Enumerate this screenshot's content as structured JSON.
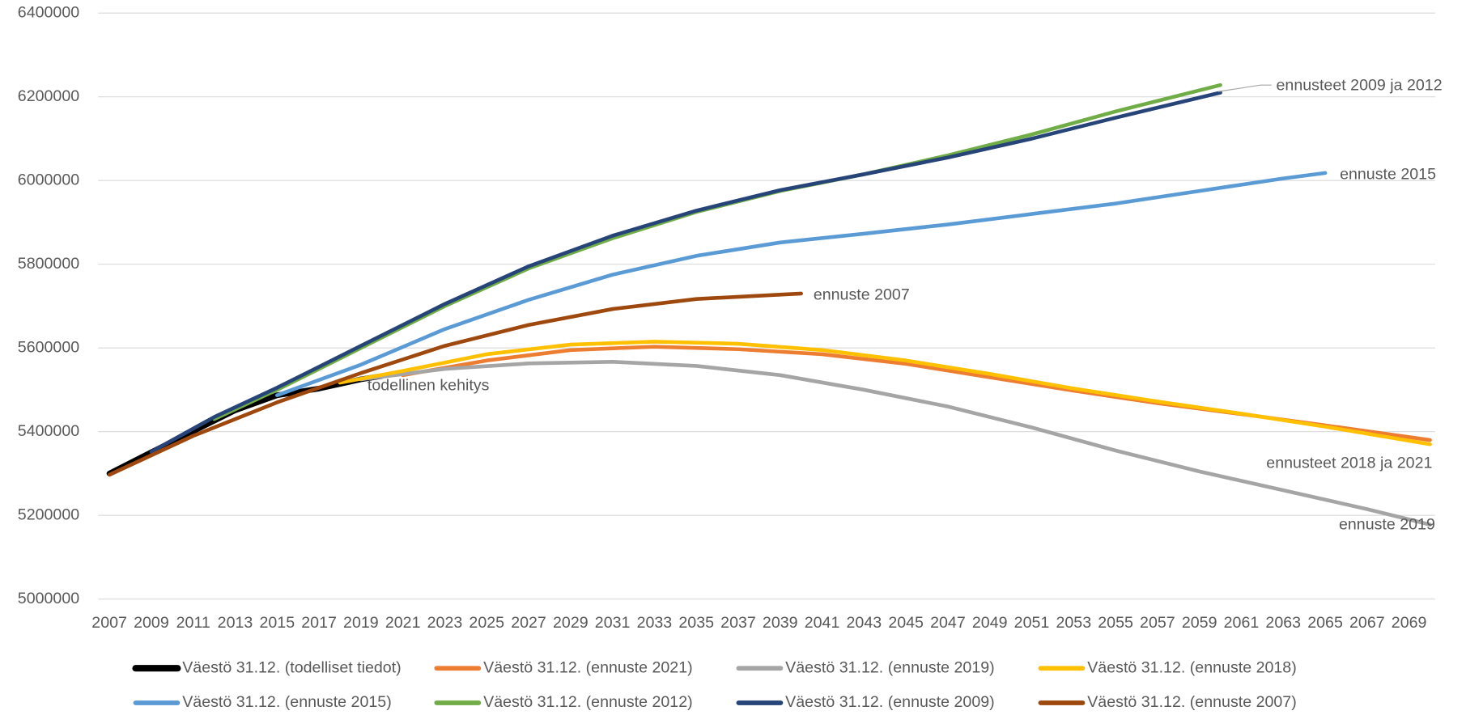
{
  "chart_data": {
    "type": "line",
    "xlim": [
      2006.5,
      2070.5
    ],
    "xticks": [
      2007,
      2009,
      2011,
      2013,
      2015,
      2017,
      2019,
      2021,
      2023,
      2025,
      2027,
      2029,
      2031,
      2033,
      2035,
      2037,
      2039,
      2041,
      2043,
      2045,
      2047,
      2049,
      2051,
      2053,
      2055,
      2057,
      2059,
      2061,
      2063,
      2065,
      2067,
      2069
    ],
    "ylim": [
      5000000,
      6400000
    ],
    "yticks": [
      5000000,
      5200000,
      5400000,
      5600000,
      5800000,
      6000000,
      6200000,
      6400000
    ],
    "grid": true,
    "legend": "bottom",
    "series": [
      {
        "name": "Väestö 31.12. (todelliset tiedot)",
        "color": "#000000",
        "x": [
          2007,
          2009,
          2011,
          2013,
          2015,
          2017,
          2019,
          2020
        ],
        "values": [
          5300000,
          5351000,
          5401000,
          5451000,
          5487000,
          5503000,
          5525000,
          5533000
        ]
      },
      {
        "name": "Väestö 31.12. (ennuste 2021)",
        "color": "#ed7d31",
        "x": [
          2021,
          2025,
          2029,
          2033,
          2037,
          2041,
          2045,
          2049,
          2053,
          2057,
          2061,
          2065,
          2070
        ],
        "values": [
          5535000,
          5570000,
          5595000,
          5603000,
          5597000,
          5585000,
          5562000,
          5530000,
          5498000,
          5468000,
          5442000,
          5415000,
          5380000
        ]
      },
      {
        "name": "Väestö 31.12. (ennuste 2019)",
        "color": "#a5a5a5",
        "x": [
          2019,
          2023,
          2027,
          2031,
          2035,
          2039,
          2043,
          2047,
          2051,
          2055,
          2059,
          2063,
          2067,
          2070
        ],
        "values": [
          5525000,
          5550000,
          5563000,
          5567000,
          5557000,
          5535000,
          5500000,
          5460000,
          5410000,
          5355000,
          5305000,
          5260000,
          5215000,
          5178000
        ]
      },
      {
        "name": "Väestö 31.12. (ennuste 2018)",
        "color": "#ffc000",
        "x": [
          2018,
          2021,
          2025,
          2029,
          2033,
          2037,
          2041,
          2045,
          2049,
          2053,
          2057,
          2061,
          2065,
          2070
        ],
        "values": [
          5517000,
          5545000,
          5585000,
          5608000,
          5615000,
          5610000,
          5595000,
          5570000,
          5538000,
          5503000,
          5472000,
          5443000,
          5412000,
          5370000
        ]
      },
      {
        "name": "Väestö 31.12. (ennuste 2015)",
        "color": "#5b9bd5",
        "x": [
          2015,
          2019,
          2023,
          2027,
          2031,
          2035,
          2039,
          2043,
          2047,
          2051,
          2055,
          2059,
          2063,
          2065
        ],
        "values": [
          5487000,
          5560000,
          5645000,
          5715000,
          5775000,
          5820000,
          5852000,
          5873000,
          5895000,
          5920000,
          5945000,
          5975000,
          6005000,
          6018000
        ]
      },
      {
        "name": "Väestö 31.12. (ennuste 2012)",
        "color": "#70ad47",
        "x": [
          2012,
          2015,
          2019,
          2023,
          2027,
          2031,
          2035,
          2039,
          2043,
          2047,
          2051,
          2055,
          2060
        ],
        "values": [
          5430000,
          5500000,
          5600000,
          5700000,
          5790000,
          5862000,
          5925000,
          5975000,
          6015000,
          6060000,
          6110000,
          6165000,
          6228000
        ]
      },
      {
        "name": "Väestö 31.12. (ennuste 2009)",
        "color": "#264478",
        "x": [
          2009,
          2012,
          2015,
          2019,
          2023,
          2027,
          2031,
          2035,
          2039,
          2043,
          2047,
          2051,
          2055,
          2060
        ],
        "values": [
          5352000,
          5435000,
          5505000,
          5605000,
          5705000,
          5795000,
          5868000,
          5928000,
          5977000,
          6015000,
          6055000,
          6100000,
          6150000,
          6210000
        ]
      },
      {
        "name": "Väestö 31.12. (ennuste 2007)",
        "color": "#9e480e",
        "x": [
          2007,
          2011,
          2015,
          2019,
          2023,
          2027,
          2031,
          2035,
          2040
        ],
        "values": [
          5297000,
          5390000,
          5470000,
          5540000,
          5605000,
          5655000,
          5693000,
          5717000,
          5730000
        ]
      }
    ],
    "annotations": [
      "ennusteet 2009 ja 2012",
      "ennuste 2015",
      "ennuste 2007",
      "todellinen kehitys",
      "ennusteet 2018 ja 2021",
      "ennuste 2019"
    ]
  }
}
